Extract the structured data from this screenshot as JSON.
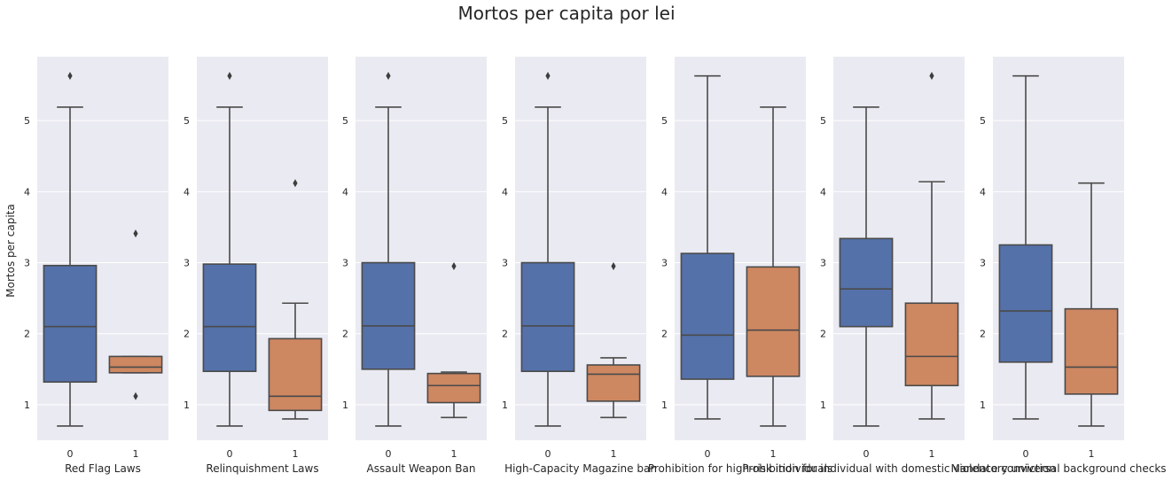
{
  "title": "Mortos per capita por lei",
  "ylabel": "Mortos per capita",
  "colors": {
    "group0": "#5471a9",
    "group1": "#cd8761",
    "panel_bg": "#eaeaf2",
    "line": "#4a4a4a"
  },
  "chart_data": [
    {
      "type": "box",
      "xlabel": "Red Flag Laws",
      "categories": [
        "0",
        "1"
      ],
      "ylim": [
        0.5,
        5.9
      ],
      "yticks": [
        1,
        2,
        3,
        4,
        5
      ],
      "boxes": [
        {
          "category": "0",
          "whisker_low": 0.7,
          "q1": 1.32,
          "median": 2.1,
          "q3": 2.96,
          "whisker_high": 5.19,
          "outliers": [
            5.63
          ]
        },
        {
          "category": "1",
          "whisker_low": 1.45,
          "q1": 1.45,
          "median": 1.53,
          "q3": 1.68,
          "whisker_high": 1.68,
          "outliers": [
            3.41,
            1.12
          ]
        }
      ]
    },
    {
      "type": "box",
      "xlabel": "Relinquishment Laws",
      "categories": [
        "0",
        "1"
      ],
      "ylim": [
        0.5,
        5.9
      ],
      "yticks": [
        1,
        2,
        3,
        4,
        5
      ],
      "boxes": [
        {
          "category": "0",
          "whisker_low": 0.7,
          "q1": 1.47,
          "median": 2.1,
          "q3": 2.98,
          "whisker_high": 5.19,
          "outliers": [
            5.63
          ]
        },
        {
          "category": "1",
          "whisker_low": 0.8,
          "q1": 0.92,
          "median": 1.12,
          "q3": 1.93,
          "whisker_high": 2.43,
          "outliers": [
            4.12
          ]
        }
      ]
    },
    {
      "type": "box",
      "xlabel": "Assault Weapon Ban",
      "categories": [
        "0",
        "1"
      ],
      "ylim": [
        0.5,
        5.9
      ],
      "yticks": [
        1,
        2,
        3,
        4,
        5
      ],
      "boxes": [
        {
          "category": "0",
          "whisker_low": 0.7,
          "q1": 1.5,
          "median": 2.11,
          "q3": 3.0,
          "whisker_high": 5.19,
          "outliers": [
            5.63
          ]
        },
        {
          "category": "1",
          "whisker_low": 0.82,
          "q1": 1.03,
          "median": 1.27,
          "q3": 1.44,
          "whisker_high": 1.46,
          "outliers": [
            2.95
          ]
        }
      ]
    },
    {
      "type": "box",
      "xlabel": "High-Capacity Magazine ban",
      "categories": [
        "0",
        "1"
      ],
      "ylim": [
        0.5,
        5.9
      ],
      "yticks": [
        1,
        2,
        3,
        4,
        5
      ],
      "boxes": [
        {
          "category": "0",
          "whisker_low": 0.7,
          "q1": 1.47,
          "median": 2.11,
          "q3": 3.0,
          "whisker_high": 5.19,
          "outliers": [
            5.63
          ]
        },
        {
          "category": "1",
          "whisker_low": 0.82,
          "q1": 1.05,
          "median": 1.43,
          "q3": 1.56,
          "whisker_high": 1.66,
          "outliers": [
            2.95
          ]
        }
      ]
    },
    {
      "type": "box",
      "xlabel": "Prohibition for high-risk individuals",
      "categories": [
        "0",
        "1"
      ],
      "ylim": [
        0.5,
        5.9
      ],
      "yticks": [
        1,
        2,
        3,
        4,
        5
      ],
      "boxes": [
        {
          "category": "0",
          "whisker_low": 0.8,
          "q1": 1.36,
          "median": 1.98,
          "q3": 3.13,
          "whisker_high": 5.63,
          "outliers": []
        },
        {
          "category": "1",
          "whisker_low": 0.7,
          "q1": 1.4,
          "median": 2.05,
          "q3": 2.94,
          "whisker_high": 5.19,
          "outliers": []
        }
      ]
    },
    {
      "type": "box",
      "xlabel": "Prohibition for individual with domestic violence conviction",
      "categories": [
        "0",
        "1"
      ],
      "ylim": [
        0.5,
        5.9
      ],
      "yticks": [
        1,
        2,
        3,
        4,
        5
      ],
      "boxes": [
        {
          "category": "0",
          "whisker_low": 0.7,
          "q1": 2.1,
          "median": 2.63,
          "q3": 3.34,
          "whisker_high": 5.19,
          "outliers": []
        },
        {
          "category": "1",
          "whisker_low": 0.8,
          "q1": 1.27,
          "median": 1.68,
          "q3": 2.43,
          "whisker_high": 4.14,
          "outliers": [
            5.63
          ]
        }
      ]
    },
    {
      "type": "box",
      "xlabel": "Mandatory universal background checks",
      "categories": [
        "0",
        "1"
      ],
      "ylim": [
        0.5,
        5.9
      ],
      "yticks": [
        1,
        2,
        3,
        4,
        5
      ],
      "boxes": [
        {
          "category": "0",
          "whisker_low": 0.8,
          "q1": 1.6,
          "median": 2.32,
          "q3": 3.25,
          "whisker_high": 5.63,
          "outliers": []
        },
        {
          "category": "1",
          "whisker_low": 0.7,
          "q1": 1.15,
          "median": 1.53,
          "q3": 2.35,
          "whisker_high": 4.12,
          "outliers": []
        }
      ]
    }
  ]
}
